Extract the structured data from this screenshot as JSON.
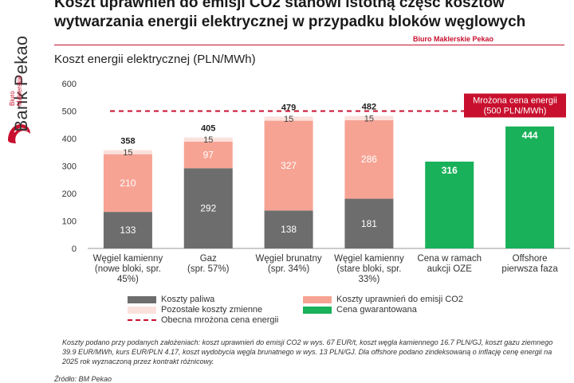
{
  "header": {
    "title": "Koszt uprawnień do emisji CO2 stanowi istotną część kosztów wytwarzania energii elektrycznej w przypadku bloków węglowych",
    "broker": "Biuro Maklerskie Pekao",
    "brand_name": "Bank Pekao",
    "brand_sub": "Biuro Maklerskie"
  },
  "chart_data": {
    "type": "bar",
    "title": "Koszt energii elektrycznej (PLN/MWh)",
    "categories": [
      "Węgiel kamienny (nowe bloki, spr. 45%)",
      "Gaz (spr. 57%)",
      "Węgiel brunatny (spr. 34%)",
      "Węgiel kamienny (stare bloki, spr. 33%)",
      "Cena w ramach aukcji OZE",
      "Offshore pierwsza faza"
    ],
    "category_lines": [
      [
        "Węgiel kamienny",
        "(nowe bloki, spr.",
        "45%)"
      ],
      [
        "Gaz",
        "(spr. 57%)"
      ],
      [
        "Węgiel brunatny",
        "(spr. 34%)"
      ],
      [
        "Węgiel kamienny",
        "(stare bloki, spr.",
        "33%)"
      ],
      [
        "Cena w ramach",
        "aukcji OZE"
      ],
      [
        "Offshore",
        "pierwsza faza"
      ]
    ],
    "series": [
      {
        "name": "Koszty paliwa",
        "color": "#6d6d6d",
        "values": [
          133,
          292,
          138,
          181,
          null,
          null
        ]
      },
      {
        "name": "Koszty uprawnień do emisji CO2",
        "color": "#f7a394",
        "values": [
          210,
          97,
          327,
          286,
          null,
          null
        ]
      },
      {
        "name": "Pozostałe koszty zmienne",
        "color": "#fbe1dc",
        "values": [
          15,
          15,
          15,
          15,
          null,
          null
        ]
      },
      {
        "name": "Cena gwarantowana",
        "color": "#19b15a",
        "values": [
          null,
          null,
          null,
          null,
          316,
          444
        ]
      }
    ],
    "totals": [
      "358",
      "405",
      "479",
      "482",
      null,
      null
    ],
    "reference_line": {
      "name": "Obecna mrożona cena energii",
      "value": 500,
      "color": "#c8102e",
      "label_lines": [
        "Mrożona cena energii",
        "(500 PLN/MWh)"
      ]
    },
    "ylim": [
      0,
      600
    ],
    "yticks": [
      0,
      100,
      200,
      300,
      400,
      500,
      600
    ],
    "grid": false,
    "legend_position": "bottom"
  },
  "note": "Koszty podano przy podanych założeniach: koszt uprawnień do emisji CO2 w wys. 67 EUR/t, koszt węgla kamiennego 16.7 PLN/GJ, koszt gazu ziemnego 39.9 EUR/MWh, kurs EUR/PLN 4.17, koszt wydobycia węgla brunatnego w wys. 13 PLN/GJ. Dla offshore podano zindeksowaną o inflację cenę energii na 2025 rok wyznaczoną przez kontrakt różnicowy.",
  "source": "Źródło: BM Pekao"
}
